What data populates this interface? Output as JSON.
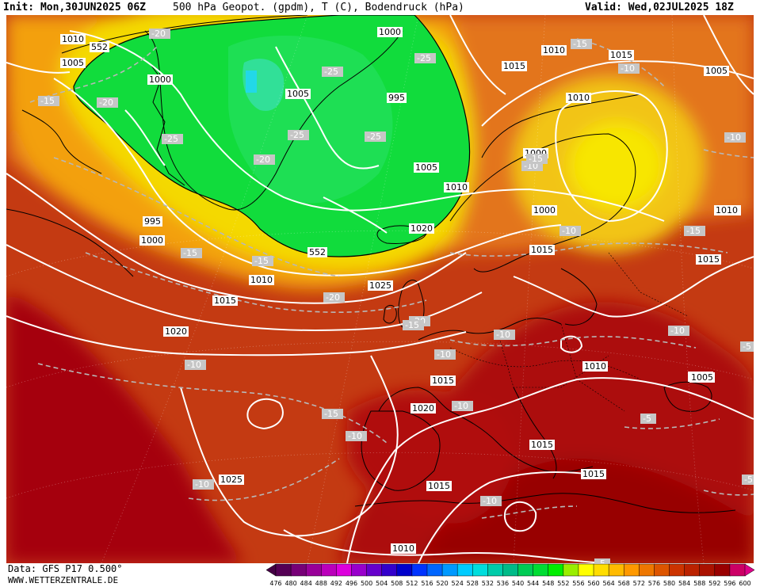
{
  "header": {
    "init": "Init: Mon,30JUN2025 06Z",
    "title": "500 hPa Geopot. (gpdm), T (C), Bodendruck (hPa)",
    "valid": "Valid: Wed,02JUL2025 18Z"
  },
  "footer": {
    "data_source": "Data: GFS P17 0.500°",
    "website": "WWW.WETTERZENTRALE.DE"
  },
  "colorbar": {
    "ticks": [
      "476",
      "480",
      "484",
      "488",
      "492",
      "496",
      "500",
      "504",
      "508",
      "512",
      "516",
      "520",
      "524",
      "528",
      "532",
      "536",
      "540",
      "544",
      "548",
      "552",
      "556",
      "560",
      "564",
      "568",
      "572",
      "576",
      "580",
      "584",
      "588",
      "592",
      "596",
      "600"
    ],
    "colors": [
      "#550055",
      "#770077",
      "#990099",
      "#bb00bb",
      "#dd00dd",
      "#9900cc",
      "#6600cc",
      "#3300cc",
      "#0000cc",
      "#0033ff",
      "#0066ff",
      "#0099ff",
      "#00ccff",
      "#00dddd",
      "#00ccaa",
      "#00bb88",
      "#00cc55",
      "#00dd33",
      "#00ee00",
      "#99ee00",
      "#ffff00",
      "#ffdd00",
      "#ffbb00",
      "#ff9900",
      "#ee7700",
      "#dd5500",
      "#cc3300",
      "#bb2200",
      "#aa1100",
      "#990000",
      "#cc0066"
    ]
  },
  "pressure_labels": [
    {
      "text": "1010"
    },
    {
      "text": "552"
    },
    {
      "text": "1005"
    },
    {
      "text": "1000"
    },
    {
      "text": "1005"
    },
    {
      "text": "995"
    },
    {
      "text": "1000"
    },
    {
      "text": "1010"
    },
    {
      "text": "1015"
    },
    {
      "text": "1015"
    },
    {
      "text": "1005"
    },
    {
      "text": "1010"
    },
    {
      "text": "1000"
    },
    {
      "text": "1005"
    },
    {
      "text": "1010"
    },
    {
      "text": "1000"
    },
    {
      "text": "1005"
    },
    {
      "text": "995"
    },
    {
      "text": "1000"
    },
    {
      "text": "552"
    },
    {
      "text": "1010"
    },
    {
      "text": "1015"
    },
    {
      "text": "1020"
    },
    {
      "text": "1025"
    },
    {
      "text": "1020"
    },
    {
      "text": "1015"
    },
    {
      "text": "1020"
    },
    {
      "text": "1015"
    },
    {
      "text": "1015"
    },
    {
      "text": "1015"
    },
    {
      "text": "1015"
    },
    {
      "text": "1010"
    },
    {
      "text": "1025"
    },
    {
      "text": "1015"
    },
    {
      "text": "1010"
    },
    {
      "text": "1010"
    },
    {
      "text": "1015"
    },
    {
      "text": "1005"
    }
  ],
  "temperature_labels": [
    {
      "text": "-20"
    },
    {
      "text": "-15"
    },
    {
      "text": "-20"
    },
    {
      "text": "-25"
    },
    {
      "text": "-25"
    },
    {
      "text": "-25"
    },
    {
      "text": "-20"
    },
    {
      "text": "-25"
    },
    {
      "text": "-15"
    },
    {
      "text": "-15"
    },
    {
      "text": "-10"
    },
    {
      "text": "-15"
    },
    {
      "text": "-20"
    },
    {
      "text": "-25"
    },
    {
      "text": "-20"
    },
    {
      "text": "-15"
    },
    {
      "text": "-10"
    },
    {
      "text": "-10"
    },
    {
      "text": "-10"
    },
    {
      "text": "-10"
    },
    {
      "text": "-15"
    },
    {
      "text": "-10"
    },
    {
      "text": "-15"
    },
    {
      "text": "-10"
    },
    {
      "text": "-10"
    },
    {
      "text": "-10"
    },
    {
      "text": "-5"
    },
    {
      "text": "-10"
    },
    {
      "text": "-5"
    },
    {
      "text": "-10"
    },
    {
      "text": "-5"
    },
    {
      "text": "-5"
    },
    {
      "text": "-10"
    },
    {
      "text": "-15"
    }
  ]
}
